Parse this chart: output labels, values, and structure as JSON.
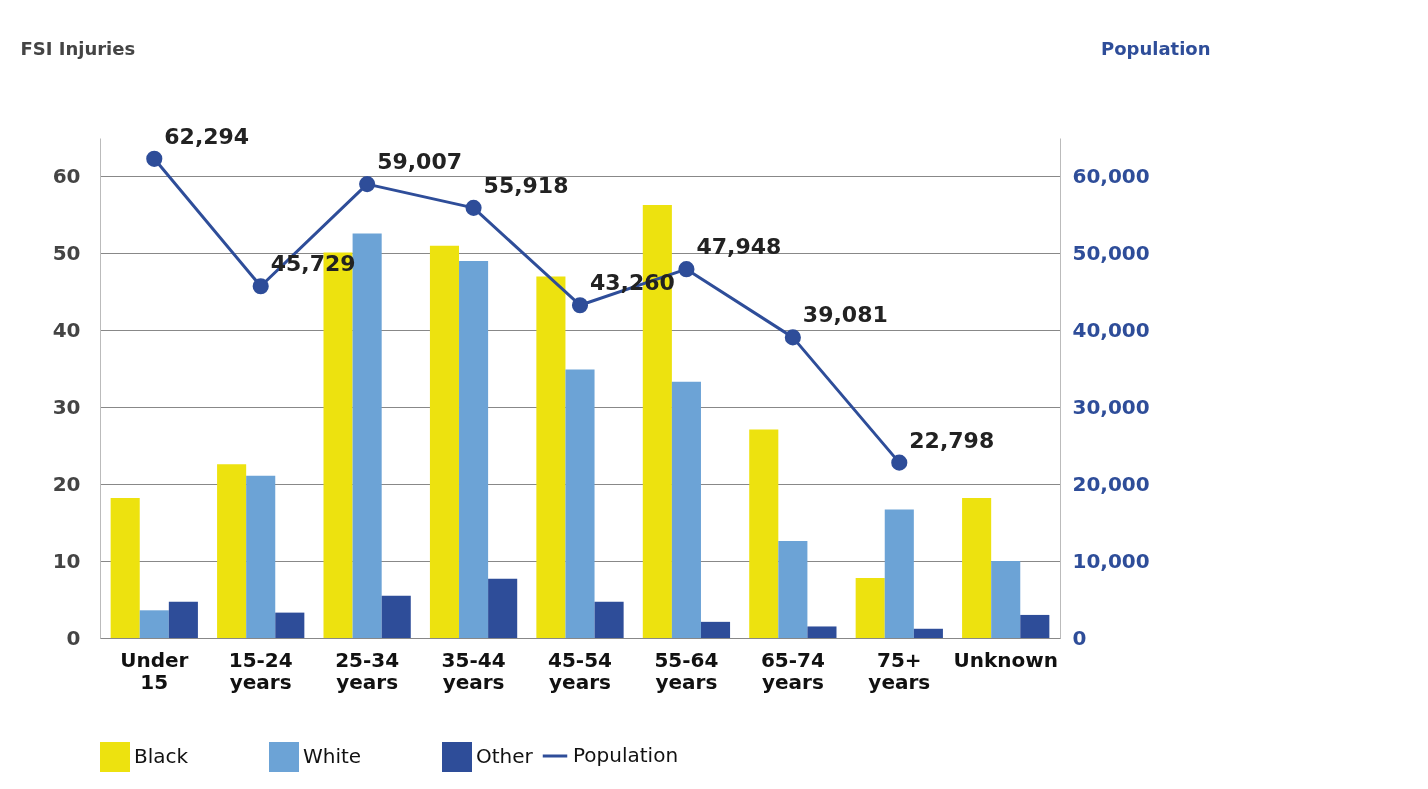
{
  "chart_data": {
    "type": "bar",
    "xlabel": null,
    "ylabel": "FSI Injuries",
    "y2label": "Population",
    "categories": [
      "Under 15",
      "15-24 years",
      "25-34 years",
      "35-44 years",
      "45-54 years",
      "55-64 years",
      "65-74 years",
      "75+ years",
      "Unknown"
    ],
    "series": [
      {
        "name": "Black",
        "color": "#ede20f",
        "values": [
          18.2,
          22.6,
          50.1,
          51.0,
          47.0,
          56.3,
          27.1,
          7.8,
          18.2
        ]
      },
      {
        "name": "White",
        "color": "#6ca3d6",
        "values": [
          3.6,
          21.1,
          52.6,
          49.0,
          34.9,
          33.3,
          12.6,
          16.7,
          10.0
        ]
      },
      {
        "name": "Other",
        "color": "#2e4d99",
        "values": [
          4.7,
          3.3,
          5.5,
          7.7,
          4.7,
          2.1,
          1.5,
          1.2,
          3.0
        ]
      },
      {
        "name": "Population",
        "type": "line",
        "axis": "y2",
        "color": "#2e4d99",
        "marker": "circle",
        "values": [
          62294,
          45729,
          59007,
          55918,
          43260,
          47948,
          39081,
          22798,
          null
        ],
        "value_labels": [
          "62,294",
          "45,729",
          "59,007",
          "55,918",
          "43,260",
          "47,948",
          "39,081",
          "22,798",
          null
        ]
      }
    ],
    "ylim": [
      0,
      65
    ],
    "yticks": [
      0,
      10,
      20,
      30,
      40,
      50,
      60
    ],
    "y2lim": [
      0,
      65000
    ],
    "y2ticks": [
      {
        "value": 0,
        "label": "0"
      },
      {
        "value": 10000,
        "label": "10,000"
      },
      {
        "value": 20000,
        "label": "20,000"
      },
      {
        "value": 30000,
        "label": "30,000"
      },
      {
        "value": 40000,
        "label": "40,000"
      },
      {
        "value": 50000,
        "label": "50,000"
      },
      {
        "value": 60000,
        "label": "60,000"
      }
    ],
    "grid": "y",
    "legend": "bottom"
  }
}
